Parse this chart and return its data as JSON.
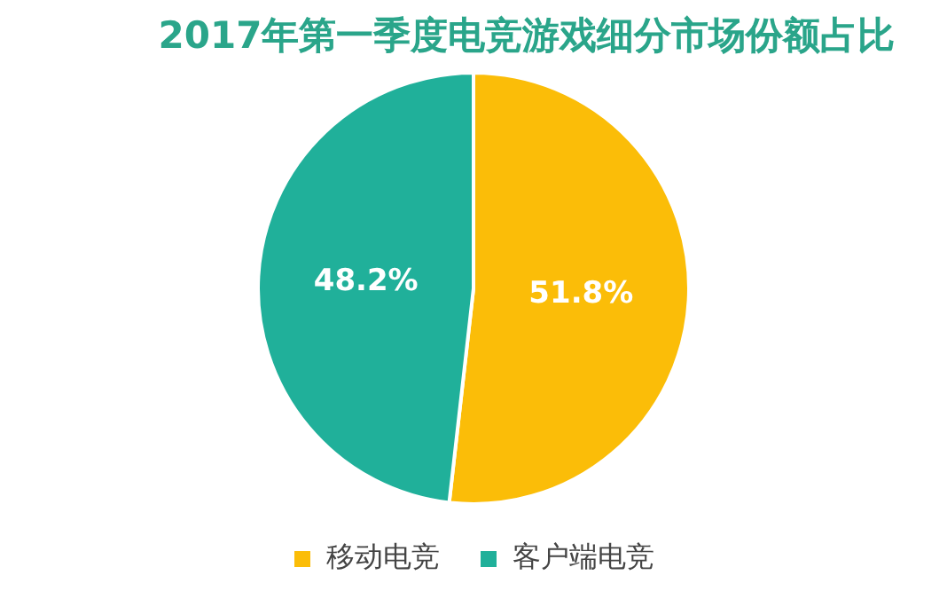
{
  "chart_data": {
    "type": "pie",
    "title": "2017年第一季度电竞游戏细分市场份额占比",
    "categories": [
      "移动电竞",
      "客户端电竞"
    ],
    "values": [
      51.8,
      48.2
    ],
    "value_labels": [
      "51.8%",
      "48.2%"
    ],
    "colors": [
      "#fbbd08",
      "#20b09a"
    ],
    "legend": "bottom"
  }
}
